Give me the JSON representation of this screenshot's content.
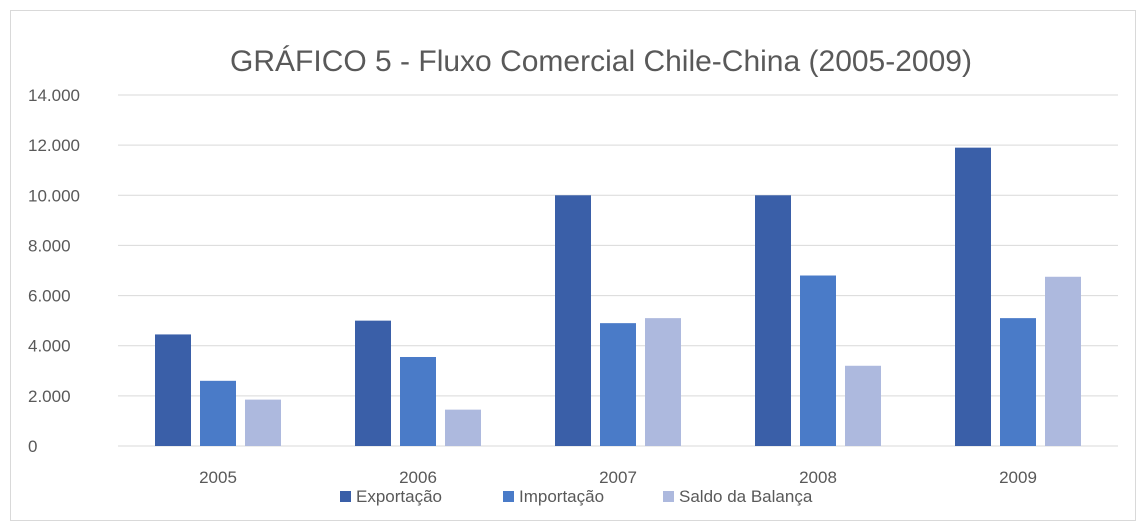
{
  "chart_data": {
    "type": "bar",
    "title": "GRÁFICO 5 - Fluxo Comercial Chile-China (2005-2009)",
    "xlabel": "",
    "ylabel": "",
    "categories": [
      "2005",
      "2006",
      "2007",
      "2008",
      "2009"
    ],
    "ylim": [
      0,
      14000
    ],
    "yticks": [
      0,
      2000,
      4000,
      6000,
      8000,
      10000,
      12000,
      14000
    ],
    "ytick_labels": [
      "0",
      "2.000",
      "4.000",
      "6.000",
      "8.000",
      "10.000",
      "12.000",
      "14.000"
    ],
    "grid": true,
    "legend_position": "bottom",
    "series": [
      {
        "name": "Exportação",
        "color": "#3a5fa8",
        "values": [
          4450,
          5000,
          10000,
          10000,
          11900
        ]
      },
      {
        "name": "Importação",
        "color": "#4a7bc8",
        "values": [
          2600,
          3550,
          4900,
          6800,
          5100
        ]
      },
      {
        "name": "Saldo da Balança",
        "color": "#adb9de",
        "values": [
          1850,
          1450,
          5100,
          3200,
          6750
        ]
      }
    ]
  }
}
